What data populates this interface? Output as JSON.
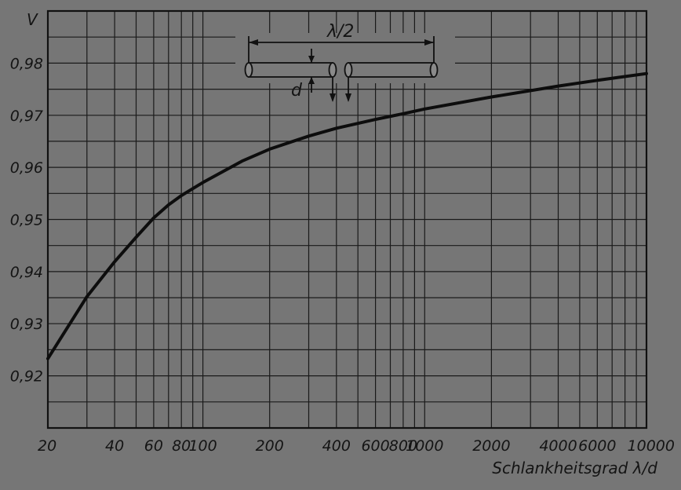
{
  "chart_data": {
    "type": "line",
    "ylabel": "V",
    "xlabel": "Schlankheitsgrad λ/d",
    "x_scale": "log",
    "xlim": [
      20,
      10000
    ],
    "ylim": [
      0.91,
      0.99
    ],
    "x_ticks": [
      "20",
      "40",
      "60",
      "80",
      "100",
      "200",
      "400",
      "600",
      "800",
      "1000",
      "2000",
      "4000",
      "6000",
      "10000"
    ],
    "y_ticks": [
      "0,92",
      "0,93",
      "0,94",
      "0,95",
      "0,96",
      "0,97",
      "0,98"
    ],
    "grid": true,
    "series": [
      {
        "x": [
          20,
          30,
          40,
          50,
          60,
          70,
          80,
          100,
          150,
          200,
          300,
          400,
          600,
          800,
          1000,
          2000,
          4000,
          6000,
          10000
        ],
        "values": [
          0.9233,
          0.9352,
          0.9419,
          0.9466,
          0.9503,
          0.9528,
          0.9546,
          0.9571,
          0.9612,
          0.9635,
          0.966,
          0.9675,
          0.9692,
          0.9703,
          0.9712,
          0.9735,
          0.9756,
          0.9767,
          0.978
        ]
      }
    ],
    "inset": {
      "dimension_label": "λ/2",
      "diameter_label": "d"
    }
  }
}
